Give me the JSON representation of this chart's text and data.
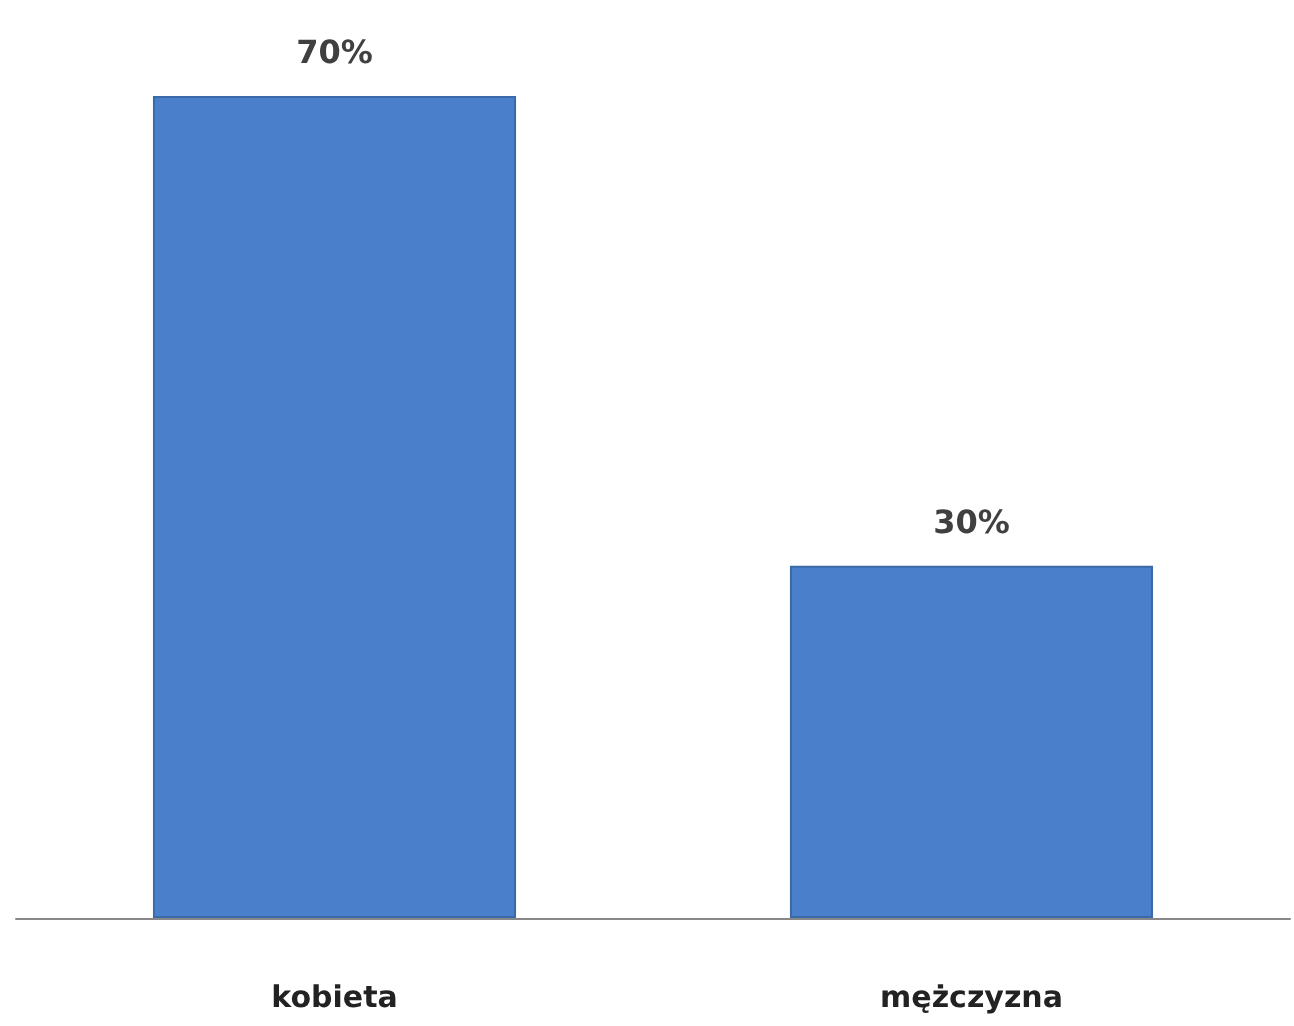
{
  "chart_data": {
    "type": "bar",
    "categories": [
      "kobieta",
      "mężczyzna"
    ],
    "values": [
      70,
      30
    ],
    "value_labels": [
      "70%",
      "30%"
    ],
    "color": "#4a7fcb"
  }
}
